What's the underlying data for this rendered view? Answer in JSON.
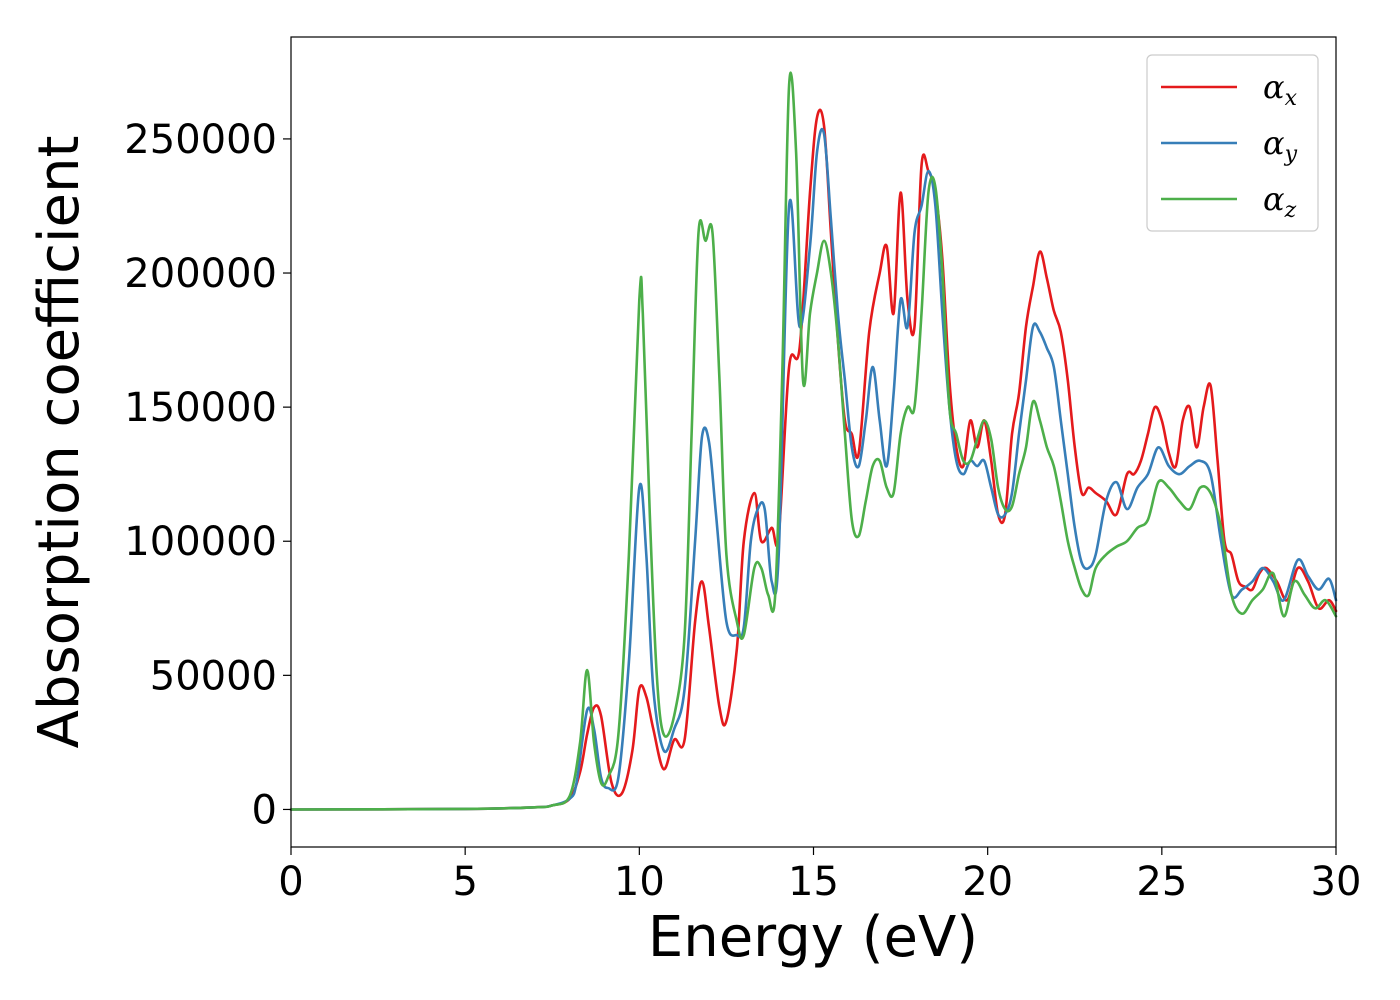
{
  "chart_data": {
    "type": "line",
    "xlabel": "Energy (eV)",
    "ylabel": "Absorption coefficient",
    "xlim": [
      0,
      30
    ],
    "ylim": [
      -14000,
      288000
    ],
    "xticks": [
      0,
      5,
      10,
      15,
      20,
      25,
      30
    ],
    "yticks": [
      0,
      50000,
      100000,
      150000,
      200000,
      250000
    ],
    "grid": false,
    "legend_position": "top-right",
    "series": [
      {
        "name": "α",
        "name_sub": "x",
        "color": "#e41a1c",
        "x": [
          0,
          5,
          7,
          7.5,
          8,
          8.3,
          8.5,
          8.7,
          8.9,
          9.2,
          9.5,
          9.8,
          10.0,
          10.2,
          10.4,
          10.7,
          11.0,
          11.3,
          11.6,
          11.8,
          12.0,
          12.3,
          12.5,
          12.8,
          13.0,
          13.3,
          13.5,
          13.8,
          14.0,
          14.3,
          14.6,
          14.9,
          15.1,
          15.3,
          15.5,
          15.7,
          15.9,
          16.1,
          16.3,
          16.6,
          16.9,
          17.1,
          17.3,
          17.5,
          17.7,
          17.9,
          18.1,
          18.3,
          18.5,
          18.7,
          18.9,
          19.1,
          19.3,
          19.5,
          19.7,
          19.9,
          20.1,
          20.3,
          20.5,
          20.7,
          20.9,
          21.1,
          21.3,
          21.5,
          21.7,
          21.9,
          22.1,
          22.3,
          22.5,
          22.7,
          22.9,
          23.1,
          23.4,
          23.7,
          24.0,
          24.2,
          24.4,
          24.6,
          24.8,
          25.0,
          25.2,
          25.4,
          25.6,
          25.8,
          26.0,
          26.2,
          26.4,
          26.6,
          26.8,
          27.0,
          27.2,
          27.4,
          27.6,
          27.8,
          28.0,
          28.3,
          28.6,
          28.9,
          29.2,
          29.5,
          29.8,
          30
        ],
        "y": [
          0,
          200,
          800,
          1500,
          4000,
          14000,
          28000,
          38000,
          35000,
          10000,
          6000,
          22000,
          45000,
          42000,
          30000,
          15000,
          26000,
          26000,
          70000,
          85000,
          68000,
          38000,
          33000,
          60000,
          100000,
          118000,
          100000,
          105000,
          102000,
          165000,
          172000,
          230000,
          258000,
          255000,
          215000,
          175000,
          145000,
          140000,
          133000,
          178000,
          200000,
          210000,
          185000,
          230000,
          190000,
          180000,
          240000,
          238000,
          230000,
          205000,
          160000,
          135000,
          128000,
          145000,
          135000,
          145000,
          130000,
          110000,
          110000,
          140000,
          155000,
          180000,
          195000,
          208000,
          198000,
          186000,
          178000,
          160000,
          135000,
          118000,
          120000,
          118000,
          115000,
          110000,
          125000,
          125000,
          130000,
          140000,
          150000,
          145000,
          133000,
          128000,
          145000,
          150000,
          135000,
          150000,
          158000,
          130000,
          100000,
          95000,
          85000,
          83000,
          82000,
          88000,
          90000,
          85000,
          78000,
          90000,
          85000,
          75000,
          78000,
          74000
        ]
      },
      {
        "name": "α",
        "name_sub": "y",
        "color": "#377eb8",
        "x": [
          0,
          5,
          7,
          7.5,
          8,
          8.2,
          8.5,
          8.7,
          8.9,
          9.1,
          9.4,
          9.7,
          10.0,
          10.2,
          10.4,
          10.7,
          11.0,
          11.3,
          11.6,
          11.8,
          12.0,
          12.2,
          12.5,
          12.8,
          13.0,
          13.2,
          13.4,
          13.6,
          13.8,
          14.0,
          14.3,
          14.6,
          14.9,
          15.1,
          15.3,
          15.5,
          15.7,
          15.9,
          16.1,
          16.3,
          16.5,
          16.7,
          16.9,
          17.1,
          17.3,
          17.5,
          17.7,
          17.9,
          18.1,
          18.3,
          18.5,
          18.7,
          18.9,
          19.1,
          19.3,
          19.5,
          19.7,
          19.9,
          20.1,
          20.3,
          20.5,
          20.7,
          20.9,
          21.1,
          21.3,
          21.5,
          21.7,
          21.9,
          22.1,
          22.3,
          22.5,
          22.7,
          22.9,
          23.1,
          23.4,
          23.7,
          24.0,
          24.3,
          24.6,
          24.9,
          25.2,
          25.5,
          25.8,
          26.1,
          26.4,
          26.7,
          27.0,
          27.3,
          27.6,
          27.9,
          28.2,
          28.5,
          28.9,
          29.2,
          29.5,
          29.8,
          30
        ],
        "y": [
          0,
          200,
          800,
          1500,
          4000,
          10000,
          37000,
          30000,
          12000,
          8000,
          12000,
          55000,
          120000,
          95000,
          45000,
          22000,
          30000,
          45000,
          100000,
          139000,
          137000,
          110000,
          70000,
          65000,
          68000,
          100000,
          112000,
          112000,
          85000,
          95000,
          225000,
          180000,
          210000,
          245000,
          252000,
          220000,
          185000,
          160000,
          135000,
          128000,
          145000,
          165000,
          145000,
          128000,
          155000,
          190000,
          180000,
          215000,
          225000,
          238000,
          225000,
          185000,
          150000,
          130000,
          125000,
          130000,
          128000,
          130000,
          120000,
          110000,
          110000,
          118000,
          140000,
          160000,
          180000,
          178000,
          172000,
          165000,
          145000,
          125000,
          105000,
          92000,
          90000,
          95000,
          115000,
          122000,
          112000,
          120000,
          125000,
          135000,
          128000,
          125000,
          128000,
          130000,
          125000,
          100000,
          80000,
          82000,
          85000,
          90000,
          85000,
          78000,
          93000,
          87000,
          82000,
          86000,
          78000
        ]
      },
      {
        "name": "α",
        "name_sub": "z",
        "color": "#4daf4a",
        "x": [
          0,
          5,
          7,
          7.5,
          8,
          8.3,
          8.5,
          8.7,
          8.9,
          9.1,
          9.4,
          9.7,
          10.0,
          10.1,
          10.3,
          10.5,
          10.7,
          11.0,
          11.3,
          11.5,
          11.7,
          11.9,
          12.1,
          12.3,
          12.5,
          12.8,
          13.0,
          13.3,
          13.5,
          13.7,
          13.9,
          14.1,
          14.3,
          14.5,
          14.7,
          14.9,
          15.1,
          15.3,
          15.5,
          15.7,
          15.9,
          16.1,
          16.3,
          16.5,
          16.7,
          16.9,
          17.1,
          17.3,
          17.5,
          17.7,
          17.9,
          18.1,
          18.3,
          18.5,
          18.7,
          18.9,
          19.1,
          19.3,
          19.5,
          19.7,
          19.9,
          20.1,
          20.3,
          20.5,
          20.7,
          20.9,
          21.1,
          21.3,
          21.5,
          21.7,
          21.9,
          22.1,
          22.3,
          22.5,
          22.7,
          22.9,
          23.1,
          23.4,
          23.7,
          24.0,
          24.3,
          24.6,
          24.9,
          25.2,
          25.5,
          25.8,
          26.1,
          26.4,
          26.7,
          27.0,
          27.3,
          27.6,
          27.9,
          28.2,
          28.5,
          28.8,
          29.1,
          29.4,
          29.7,
          30
        ],
        "y": [
          0,
          200,
          800,
          1500,
          5000,
          25000,
          52000,
          25000,
          10000,
          12000,
          28000,
          95000,
          190000,
          185000,
          110000,
          50000,
          28000,
          35000,
          65000,
          140000,
          215000,
          212000,
          215000,
          160000,
          95000,
          70000,
          65000,
          90000,
          90000,
          80000,
          80000,
          160000,
          270000,
          245000,
          160000,
          185000,
          200000,
          212000,
          200000,
          175000,
          140000,
          108000,
          102000,
          115000,
          128000,
          130000,
          120000,
          118000,
          140000,
          150000,
          150000,
          185000,
          230000,
          232000,
          200000,
          150000,
          140000,
          130000,
          130000,
          138000,
          145000,
          138000,
          120000,
          112000,
          113000,
          125000,
          135000,
          152000,
          145000,
          135000,
          128000,
          115000,
          100000,
          90000,
          82000,
          80000,
          90000,
          95000,
          98000,
          100000,
          105000,
          108000,
          122000,
          120000,
          115000,
          112000,
          120000,
          118000,
          105000,
          80000,
          73000,
          78000,
          82000,
          88000,
          72000,
          85000,
          80000,
          75000,
          78000,
          72000
        ]
      }
    ]
  }
}
